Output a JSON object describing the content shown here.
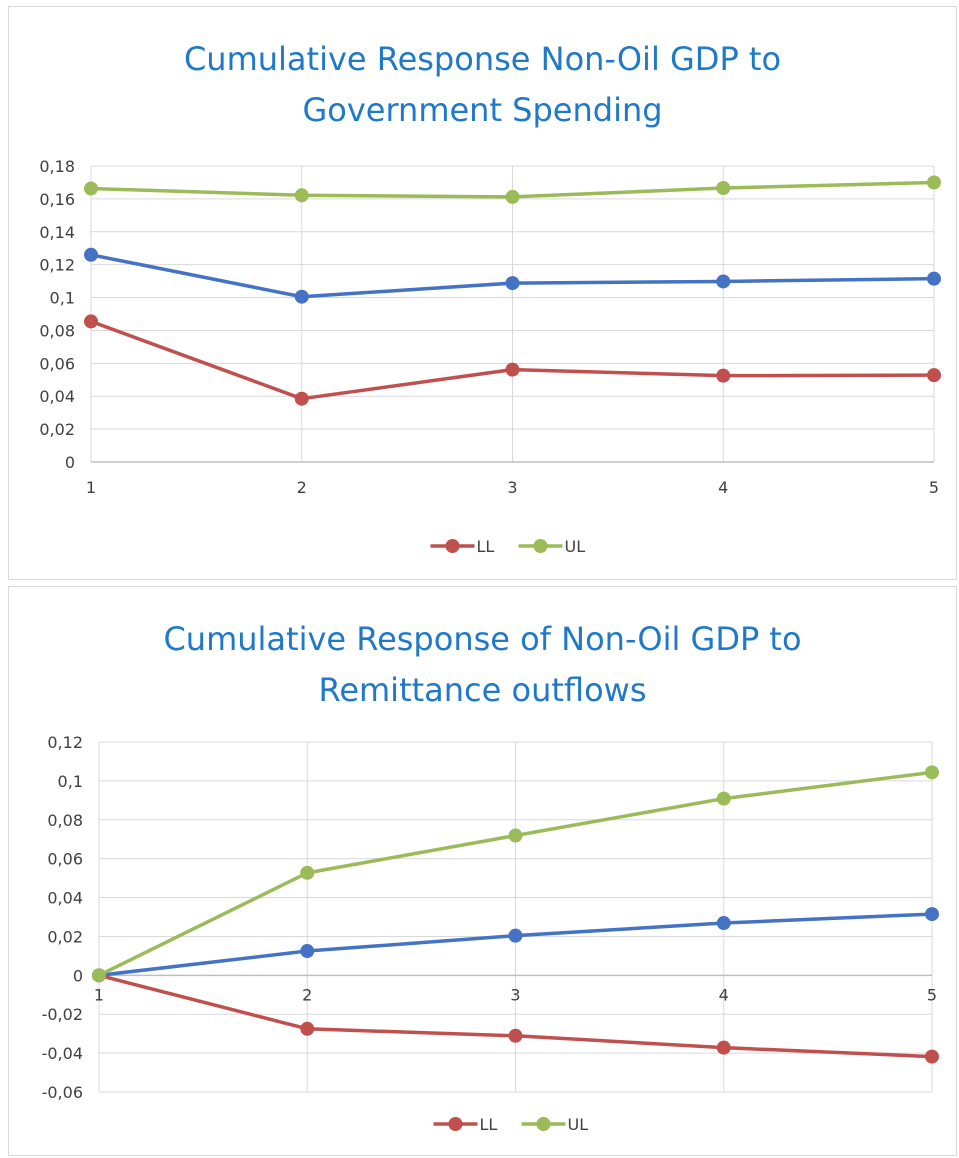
{
  "colors": {
    "background": "#ffffff",
    "title": "#1f78c8",
    "grid": "#d9d9d9",
    "axis": "#bfbfbf",
    "text": "#404040"
  },
  "chart_data": [
    {
      "type": "line",
      "title_line1": "Cumulative Response Non-Oil GDP to",
      "title_line2": "Government Spending",
      "xlabel": "",
      "ylabel": "",
      "x": [
        1,
        2,
        3,
        4,
        5
      ],
      "x_tick_labels": [
        "1",
        "2",
        "3",
        "4",
        "5"
      ],
      "ylim": [
        0,
        0.18
      ],
      "ystep": 0.02,
      "y_tick_labels": [
        "0",
        "0,02",
        "0,04",
        "0,06",
        "0,08",
        "0,1",
        "0,12",
        "0,14",
        "0,16",
        "0,18"
      ],
      "grid": true,
      "legend_position": "bottom",
      "series": [
        {
          "key": "center",
          "color": "#4472c4",
          "in_legend": false,
          "values": [
            0.126,
            0.1005,
            0.1088,
            0.1098,
            0.1115
          ]
        },
        {
          "key": "ll",
          "name": "LL",
          "color": "#c0504d",
          "in_legend": true,
          "values": [
            0.0855,
            0.0385,
            0.0562,
            0.0525,
            0.0528
          ]
        },
        {
          "key": "ul",
          "name": "UL",
          "color": "#9bbb59",
          "in_legend": true,
          "values": [
            0.1663,
            0.1622,
            0.1612,
            0.1666,
            0.17
          ]
        }
      ]
    },
    {
      "type": "line",
      "title_line1": "Cumulative Response of Non-Oil GDP to",
      "title_line2": "Remittance outflows",
      "xlabel": "",
      "ylabel": "",
      "x": [
        1,
        2,
        3,
        4,
        5
      ],
      "x_tick_labels": [
        "1",
        "2",
        "3",
        "4",
        "5"
      ],
      "ylim": [
        -0.06,
        0.12
      ],
      "ystep": 0.02,
      "y_tick_labels": [
        "-0,06",
        "-0,04",
        "-0,02",
        "0",
        "0,02",
        "0,04",
        "0,06",
        "0,08",
        "0,1",
        "0,12"
      ],
      "grid": true,
      "legend_position": "bottom",
      "series": [
        {
          "key": "center",
          "color": "#4472c4",
          "in_legend": false,
          "values": [
            0.0,
            0.0125,
            0.0204,
            0.0269,
            0.0315
          ]
        },
        {
          "key": "ll",
          "name": "LL",
          "color": "#c0504d",
          "in_legend": true,
          "values": [
            0.0,
            -0.0275,
            -0.0311,
            -0.0372,
            -0.0418
          ]
        },
        {
          "key": "ul",
          "name": "UL",
          "color": "#9bbb59",
          "in_legend": true,
          "values": [
            0.0,
            0.0527,
            0.0719,
            0.0909,
            0.1044
          ]
        }
      ]
    }
  ]
}
